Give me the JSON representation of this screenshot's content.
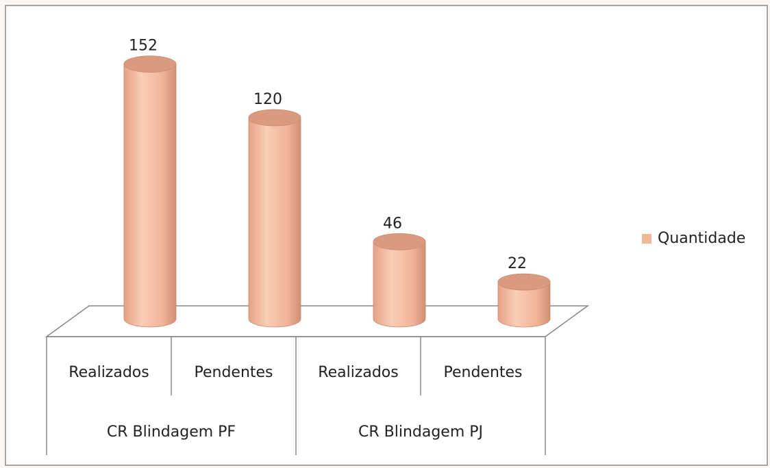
{
  "chart_data": {
    "type": "bar3d",
    "categories": [
      "Realizados",
      "Pendentes",
      "Realizados",
      "Pendentes"
    ],
    "groups": [
      "CR Blindagem PF",
      "CR Blindagem PJ"
    ],
    "series": [
      {
        "name": "Quantidade",
        "color": "#f3b89c",
        "values": [
          152,
          120,
          46,
          22
        ]
      }
    ],
    "legend": "right"
  }
}
